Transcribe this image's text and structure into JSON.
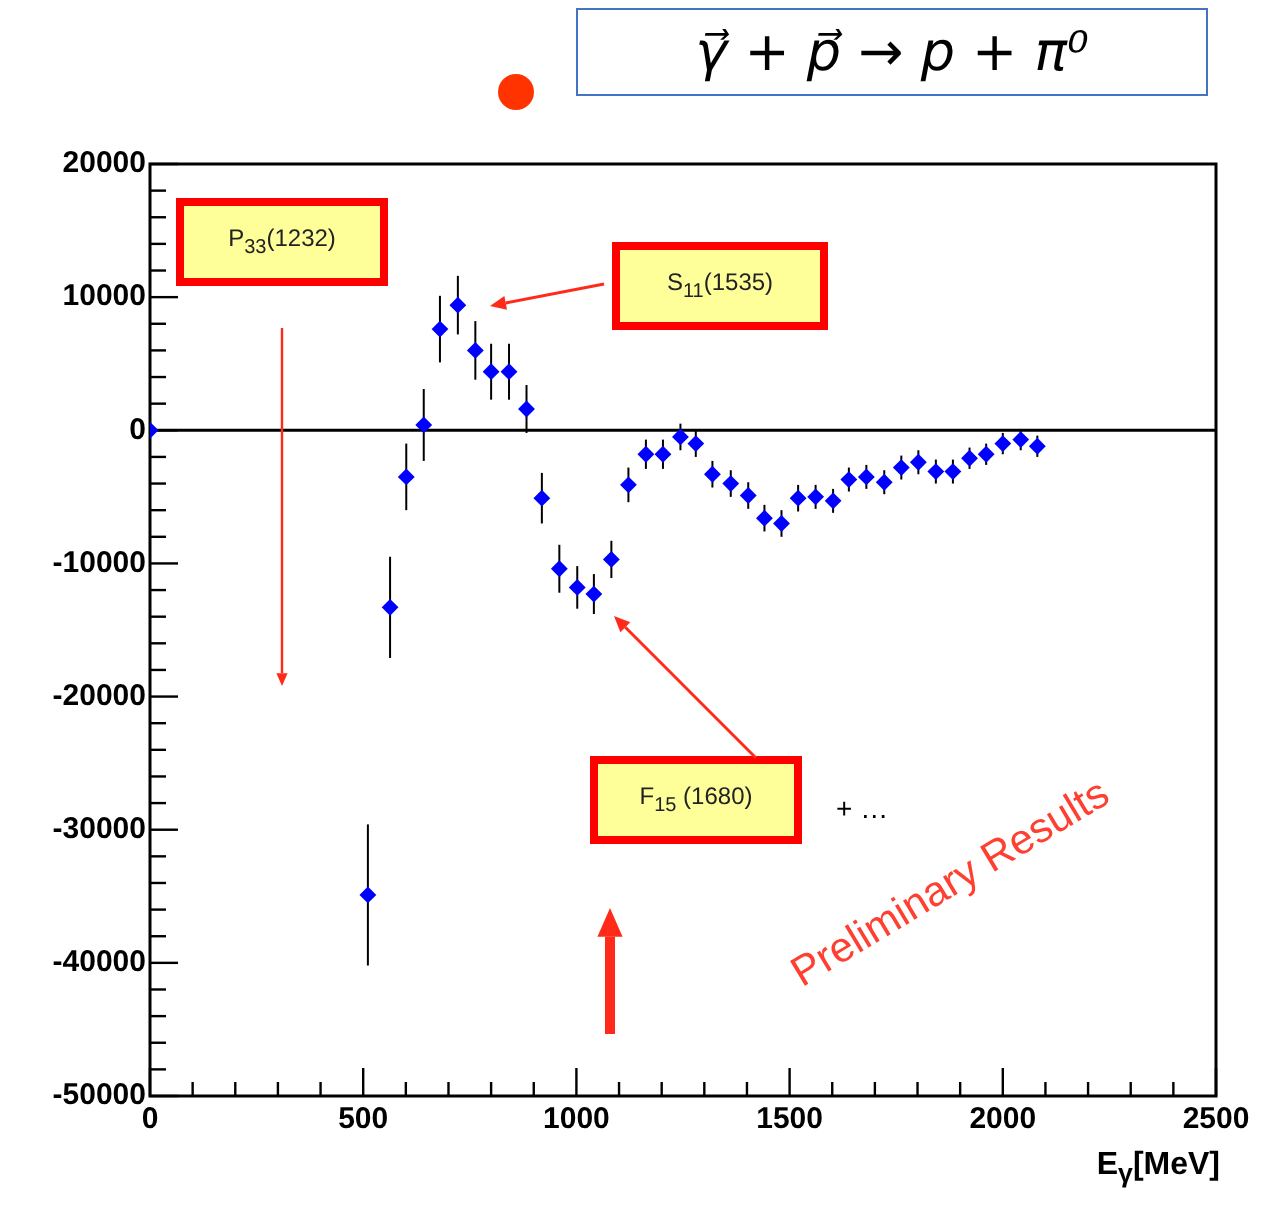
{
  "chart_data": {
    "type": "scatter",
    "title": "γ⃗ + p⃗ → p + π⁰",
    "xlabel": "E$_{γ}$[MeV]",
    "x": [
      0,
      511,
      563,
      601,
      642,
      680,
      722,
      763,
      800,
      842,
      883,
      919,
      960,
      1002,
      1041,
      1082,
      1122,
      1163,
      1203,
      1244,
      1280,
      1319,
      1362,
      1403,
      1441,
      1481,
      1520,
      1561,
      1602,
      1639,
      1680,
      1722,
      1762,
      1802,
      1843,
      1883,
      1922,
      1961,
      2000,
      2042,
      2081
    ],
    "series": [
      {
        "color": "#0000ff",
        "values": [
          0,
          -34900,
          -13300,
          -3500,
          400,
          7600,
          9400,
          6000,
          4400,
          4400,
          1600,
          -5100,
          -10400,
          -11800,
          -12300,
          -9700,
          -4100,
          -1800,
          -1800,
          -500,
          -1000,
          -3300,
          -4000,
          -4900,
          -6600,
          -7000,
          -5100,
          -5000,
          -5300,
          -3700,
          -3500,
          -3900,
          -2800,
          -2400,
          -3100,
          -3100,
          -2100,
          -1800,
          -1000,
          -700,
          -1200
        ],
        "errors": [
          null,
          5300,
          3800,
          2500,
          2700,
          2500,
          2200,
          2200,
          2100,
          2100,
          1800,
          1900,
          1800,
          1600,
          1500,
          1400,
          1300,
          1100,
          1100,
          1000,
          1000,
          1000,
          1000,
          1000,
          1000,
          1000,
          1000,
          900,
          900,
          900,
          900,
          900,
          900,
          900,
          900,
          900,
          800,
          800,
          800,
          800,
          800
        ]
      }
    ],
    "xlim": [
      0,
      2500
    ],
    "xticks": [
      0,
      {
        "value": 100,
        "label": null
      },
      {
        "value": 200,
        "label": null
      },
      {
        "value": 300,
        "label": null
      },
      {
        "value": 400,
        "label": null
      },
      500,
      {
        "value": 600,
        "label": null
      },
      {
        "value": 700,
        "label": null
      },
      {
        "value": 800,
        "label": null
      },
      {
        "value": 900,
        "label": null
      },
      1000,
      {
        "value": 1100,
        "label": null
      },
      {
        "value": 1200,
        "label": null
      },
      {
        "value": 1300,
        "label": null
      },
      {
        "value": 1400,
        "label": null
      },
      1500,
      {
        "value": 1600,
        "label": null
      },
      {
        "value": 1700,
        "label": null
      },
      {
        "value": 1800,
        "label": null
      },
      {
        "value": 1900,
        "label": null
      },
      2000,
      {
        "value": 2100,
        "label": null
      },
      {
        "value": 2200,
        "label": null
      },
      {
        "value": 2300,
        "label": null
      },
      {
        "value": 2400,
        "label": null
      },
      2500
    ],
    "ylim": [
      -50000,
      20000
    ],
    "yticks": [
      -50000,
      {
        "value": -48000,
        "label": null
      },
      {
        "value": -46000,
        "label": null
      },
      {
        "value": -44000,
        "label": null
      },
      {
        "value": -42000,
        "label": null
      },
      -40000,
      {
        "value": -38000,
        "label": null
      },
      {
        "value": -36000,
        "label": null
      },
      {
        "value": -34000,
        "label": null
      },
      {
        "value": -32000,
        "label": null
      },
      -30000,
      {
        "value": -28000,
        "label": null
      },
      {
        "value": -26000,
        "label": null
      },
      {
        "value": -24000,
        "label": null
      },
      {
        "value": -22000,
        "label": null
      },
      -20000,
      {
        "value": -18000,
        "label": null
      },
      {
        "value": -16000,
        "label": null
      },
      {
        "value": -14000,
        "label": null
      },
      {
        "value": -12000,
        "label": null
      },
      -10000,
      {
        "value": -8000,
        "label": null
      },
      {
        "value": -6000,
        "label": null
      },
      {
        "value": -4000,
        "label": null
      },
      {
        "value": -2000,
        "label": null
      },
      0,
      {
        "value": 2000,
        "label": null
      },
      {
        "value": 4000,
        "label": null
      },
      {
        "value": 6000,
        "label": null
      },
      {
        "value": 8000,
        "label": null
      },
      10000,
      {
        "value": 12000,
        "label": null
      },
      {
        "value": 14000,
        "label": null
      },
      {
        "value": 16000,
        "label": null
      },
      {
        "value": 18000,
        "label": null
      },
      20000
    ],
    "ref_lines": [
      {
        "axis": "y",
        "value": 0,
        "color": "#000000"
      }
    ],
    "marker": "diamond",
    "grid": false,
    "legend": false,
    "annotations": [
      "P$_{33}$(1232)",
      "S$_{11}$(1535)",
      "F$_{15}$ (1680)",
      "+ …",
      "Preliminary Results"
    ]
  }
}
